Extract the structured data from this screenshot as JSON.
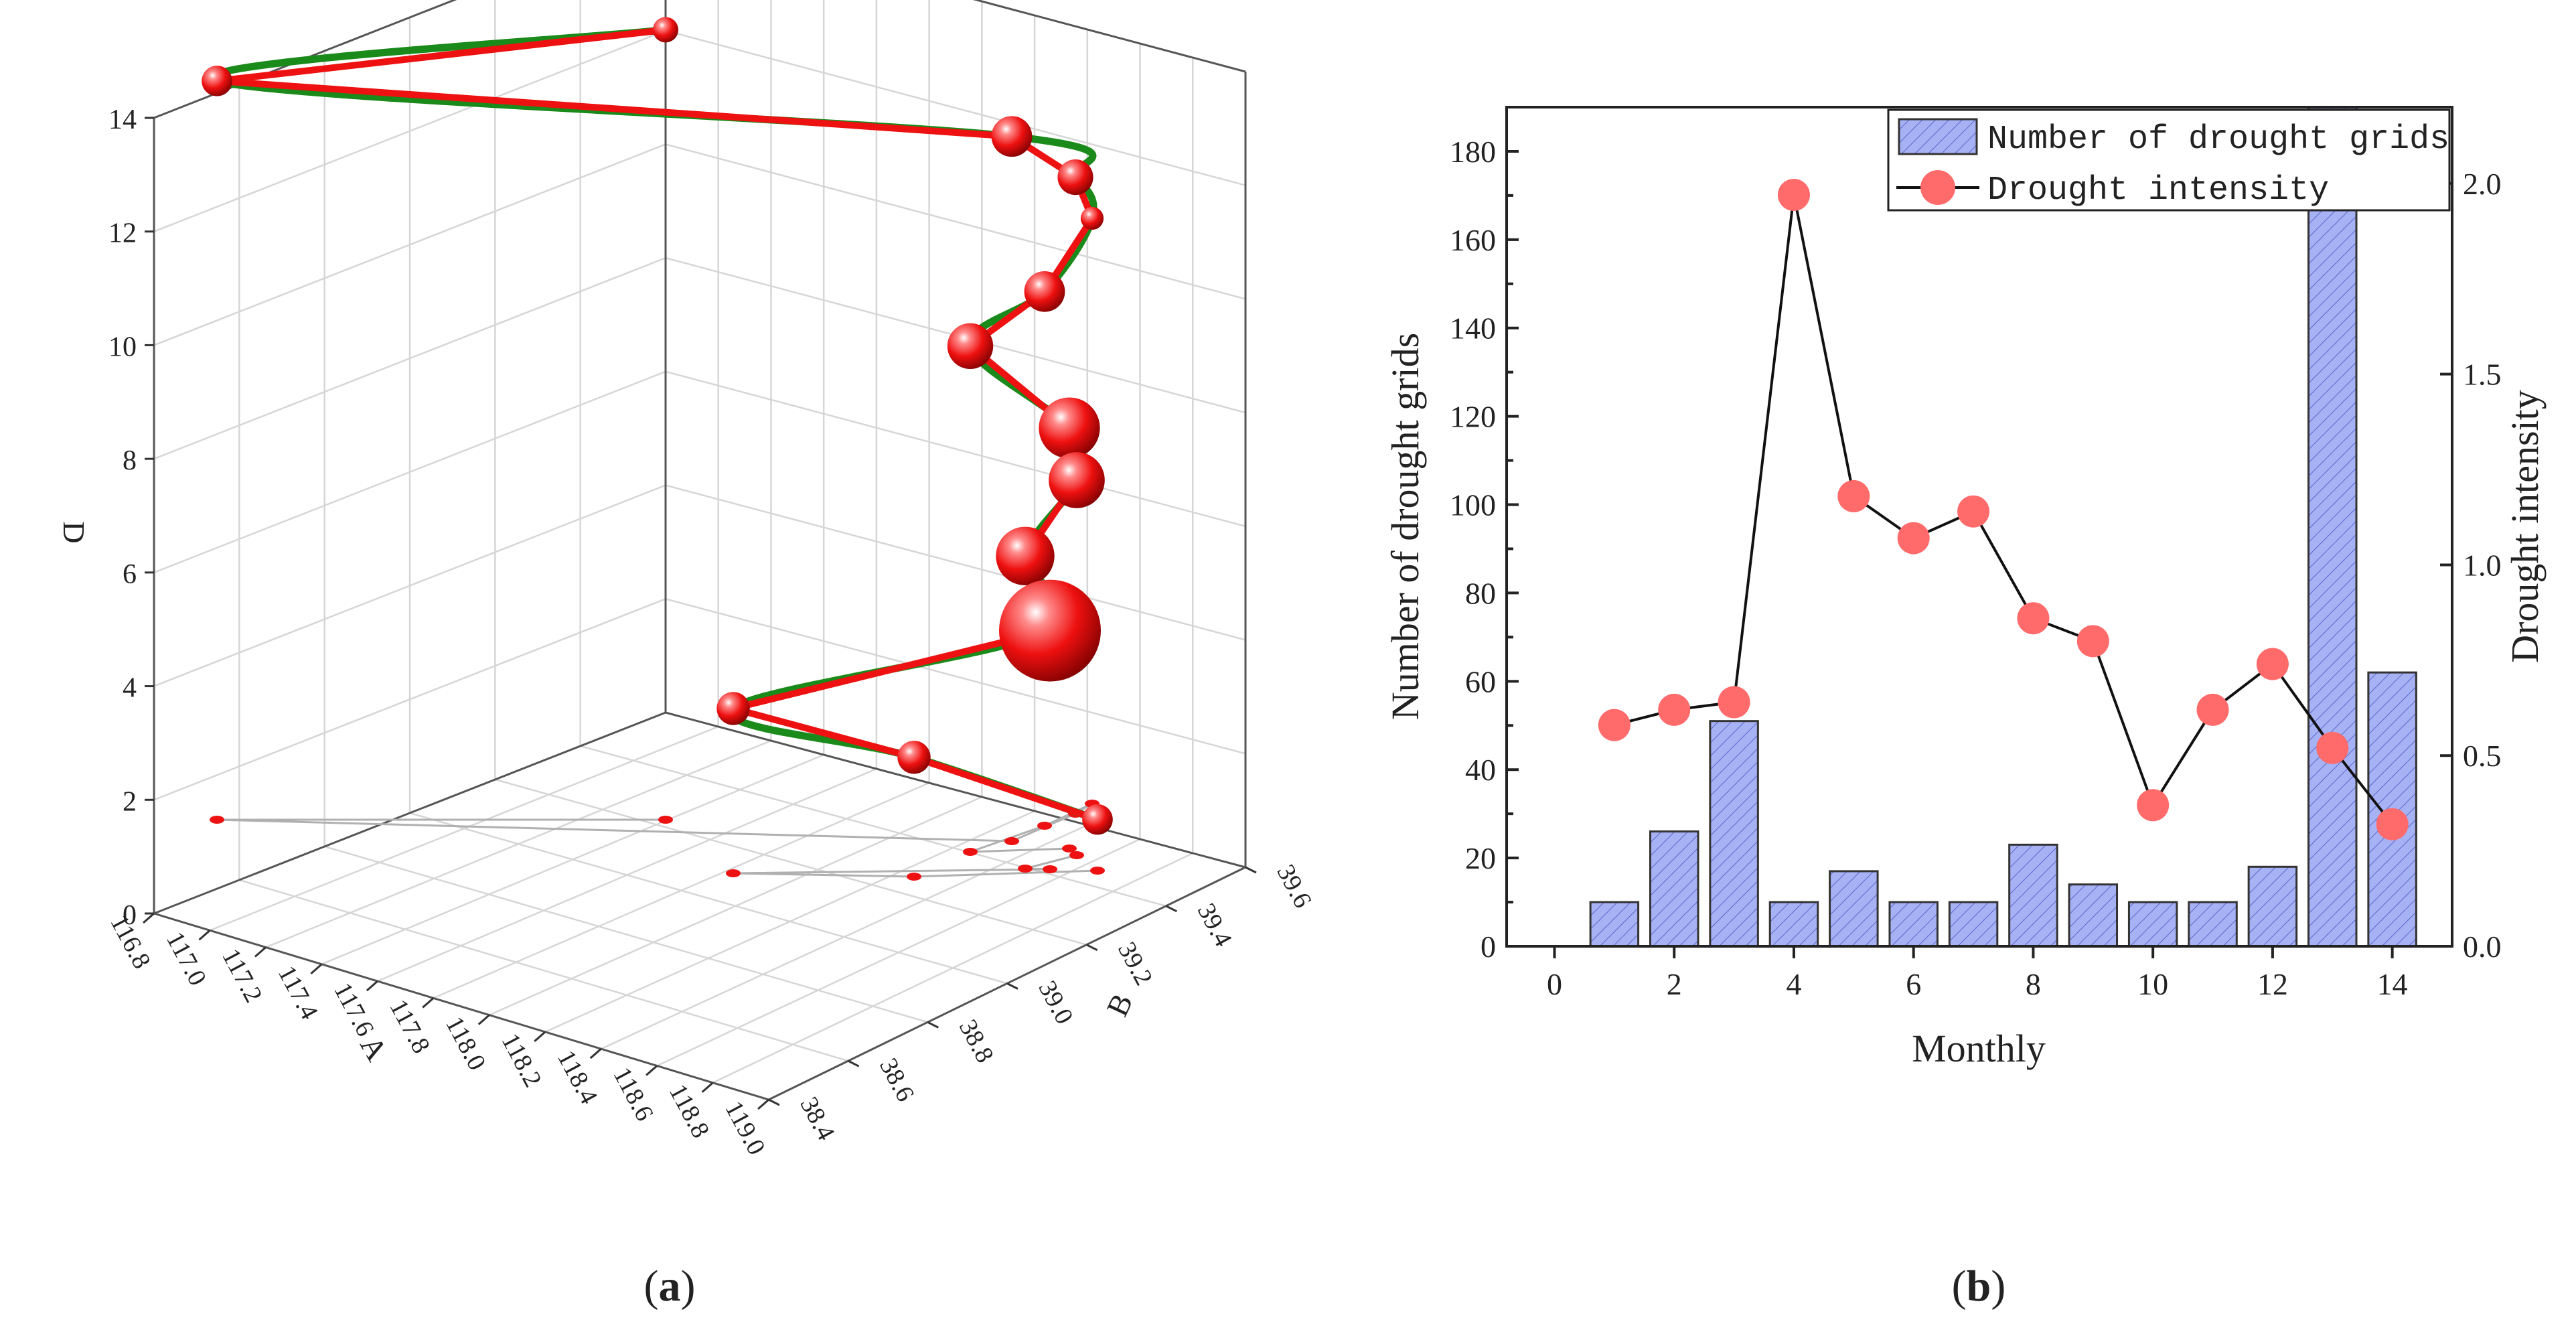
{
  "figure": {
    "panel_a": {
      "label_open": "(",
      "letter": "a",
      "label_close": ")"
    },
    "panel_b": {
      "label_open": "(",
      "letter": "b",
      "label_close": ")"
    }
  },
  "chart_data": [
    {
      "panel": "a",
      "type": "scatter",
      "title": "",
      "xlabel": "A",
      "ylabel": "B",
      "zlabel": "D",
      "x_ticks": [
        "116.8",
        "117.0",
        "117.2",
        "117.4",
        "117.6",
        "117.8",
        "118.0",
        "118.2",
        "118.4",
        "118.6",
        "118.8",
        "119.0"
      ],
      "y_ticks": [
        "38.4",
        "38.6",
        "38.8",
        "39.0",
        "39.2",
        "39.4",
        "39.6"
      ],
      "z_ticks": [
        "0",
        "2",
        "4",
        "6",
        "8",
        "10",
        "12",
        "14"
      ],
      "zlim": [
        0,
        14
      ],
      "grid": true,
      "series": [
        {
          "name": "trajectory (straight)",
          "color": "#ee1111"
        },
        {
          "name": "trajectory (smoothed)",
          "color": "#1a8a1a"
        },
        {
          "name": "projection",
          "color": "#b0b0b0"
        }
      ],
      "points": [
        {
          "d": 13.9,
          "size": 1.0
        },
        {
          "d": 13.0,
          "size": 1.2
        },
        {
          "d": 12.4,
          "size": 1.6
        },
        {
          "d": 11.2,
          "size": 1.4
        },
        {
          "d": 10.3,
          "size": 0.9
        },
        {
          "d": 9.4,
          "size": 1.6
        },
        {
          "d": 8.9,
          "size": 1.8
        },
        {
          "d": 7.4,
          "size": 2.4
        },
        {
          "d": 6.6,
          "size": 2.2
        },
        {
          "d": 5.5,
          "size": 2.3
        },
        {
          "d": 4.2,
          "size": 4.0
        },
        {
          "d": 2.9,
          "size": 1.3
        },
        {
          "d": 2.1,
          "size": 1.3
        },
        {
          "d": 0.9,
          "size": 1.2
        }
      ]
    },
    {
      "panel": "b",
      "type": "bar",
      "title": "",
      "xlabel": "Monthly",
      "ylabel": "Number of drought grids",
      "y2label": "Drought intensity",
      "xlim": [
        -0.8,
        15
      ],
      "ylim": [
        0,
        190
      ],
      "y2lim": [
        0,
        2.2
      ],
      "x_ticks": [
        "0",
        "2",
        "4",
        "6",
        "8",
        "10",
        "12",
        "14"
      ],
      "y_ticks": [
        "0",
        "20",
        "40",
        "60",
        "80",
        "100",
        "120",
        "140",
        "160",
        "180"
      ],
      "y2_ticks": [
        "0.0",
        "0.5",
        "1.0",
        "1.5",
        "2.0"
      ],
      "x": [
        1,
        2,
        3,
        4,
        5,
        6,
        7,
        8,
        9,
        10,
        11,
        12,
        13,
        14
      ],
      "series": [
        {
          "name": "Number of drought grids",
          "type": "bar",
          "axis": "left",
          "color": "#a7b2f5",
          "values": [
            10,
            26,
            51,
            10,
            17,
            10,
            10,
            23,
            14,
            10,
            10,
            18,
            190,
            62
          ]
        },
        {
          "name": "Drought intensity",
          "type": "line",
          "axis": "right",
          "color": "#ff6a6a",
          "values": [
            0.58,
            0.62,
            0.64,
            1.97,
            1.18,
            1.07,
            1.14,
            0.86,
            0.8,
            0.37,
            0.62,
            0.74,
            0.52,
            0.32
          ]
        }
      ],
      "legend": "top-right"
    }
  ]
}
